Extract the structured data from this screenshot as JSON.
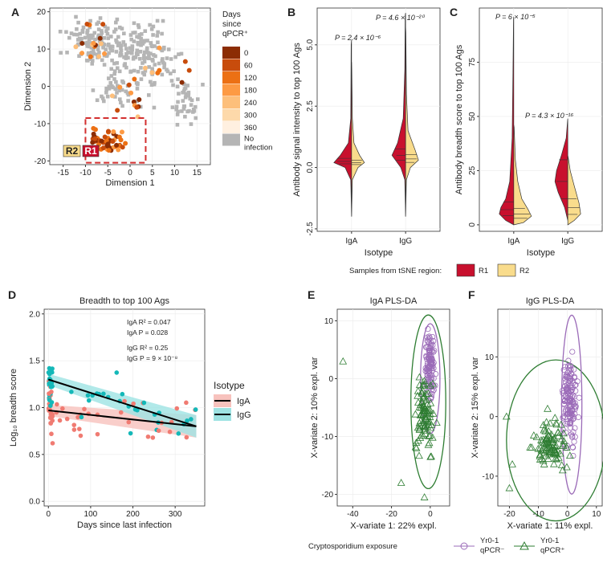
{
  "colors": {
    "r1": "#c8102e",
    "r2": "#f9dc8c",
    "iga": "#f07b72",
    "igg": "#14b8b8",
    "neg": "#9b6bb8",
    "pos": "#2e7d32",
    "grey": "#b5b5b5",
    "days": [
      "#8c2d04",
      "#c84c0c",
      "#ec7014",
      "#fd9a44",
      "#fdbf7b",
      "#fdd9aa",
      "#fff0e0"
    ]
  },
  "chart_data": [
    {
      "panel": "A",
      "type": "scatter",
      "xlabel": "Dimension 1",
      "ylabel": "Dimension 2",
      "xlim": [
        -18,
        18
      ],
      "ylim": [
        -21,
        21
      ],
      "xticks": [
        "-15",
        "-10",
        "-5",
        "0",
        "5",
        "10",
        "15"
      ],
      "yticks": [
        "20",
        "10",
        "0",
        "-10",
        "-20"
      ],
      "legend_title_lines": [
        "Days",
        "since",
        "qPCR⁺"
      ],
      "legend_items": [
        "0",
        "60",
        "120",
        "180",
        "240",
        "300",
        "360",
        "No infection"
      ],
      "region_labels": [
        "R2",
        "R1"
      ],
      "region_box": {
        "x": [
          -10,
          3.5
        ],
        "y": [
          -20.5,
          -8.5
        ]
      },
      "grey_count": 340,
      "colored_count": 90
    },
    {
      "panel": "B",
      "type": "violin",
      "xlabel": "Isotype",
      "ylabel": "Antibody signal intensity to top 100 Ags",
      "categories": [
        "IgA",
        "IgG"
      ],
      "ylim": [
        -2.6,
        6.5
      ],
      "yticks": [
        "-2.5",
        "0.0",
        "2.5",
        "5.0"
      ],
      "pvalues": [
        "P = 2.4 × 10⁻⁶",
        "P = 4.6 × 10⁻²⁰"
      ],
      "series": [
        {
          "name": "R1",
          "medians": [
            0.25,
            0.5
          ]
        },
        {
          "name": "R2",
          "medians": [
            0.2,
            0.35
          ]
        }
      ]
    },
    {
      "panel": "C",
      "type": "violin",
      "xlabel": "Isotype",
      "ylabel": "Antibody breadth score to top 100 Ags",
      "categories": [
        "IgA",
        "IgG"
      ],
      "ylim": [
        -3,
        100
      ],
      "yticks": [
        "0",
        "25",
        "50",
        "75"
      ],
      "pvalues": [
        "P = 6 × 10⁻⁵",
        "P = 4.3 × 10⁻¹⁶"
      ],
      "series": [
        {
          "name": "R1",
          "medians": [
            7,
            20
          ]
        },
        {
          "name": "R2",
          "medians": [
            5,
            8
          ]
        }
      ]
    },
    {
      "panel": "D",
      "type": "scatter",
      "title": "Breadth to top 100 Ags",
      "xlabel": "Days since last infection",
      "ylabel": "Log₁₀ breadth score",
      "xlim": [
        -10,
        370
      ],
      "ylim": [
        -0.05,
        2.05
      ],
      "xticks": [
        "0",
        "100",
        "200",
        "300"
      ],
      "yticks": [
        "0.0",
        "0.5",
        "1.0",
        "1.5",
        "2.0"
      ],
      "legend_title": "Isotype",
      "series": [
        {
          "name": "IgA",
          "fit": [
            [
              0,
              0.97
            ],
            [
              350,
              0.8
            ]
          ],
          "stats": [
            "IgA R² = 0.047",
            "IgA P = 0.028"
          ]
        },
        {
          "name": "IgG",
          "fit": [
            [
              0,
              1.3
            ],
            [
              350,
              0.8
            ]
          ],
          "stats": [
            "IgG R² = 0.25",
            "IgG P = 9 × 10⁻⁸"
          ]
        }
      ]
    },
    {
      "panel": "E",
      "type": "scatter",
      "title": "IgA PLS-DA",
      "xlabel": "X-variate 1: 22% expl.",
      "ylabel": "X-variate 2: 10% expl. var",
      "xlim": [
        -48,
        10
      ],
      "ylim": [
        -22,
        12
      ],
      "xticks": [
        "-40",
        "-20",
        "0"
      ],
      "yticks": [
        "10",
        "0",
        "-10",
        "-20"
      ]
    },
    {
      "panel": "F",
      "type": "scatter",
      "title": "IgG PLS-DA",
      "xlabel": "X-variate 1: 11% expl.",
      "ylabel": "X-variate 2: 15% expl. var",
      "xlim": [
        -24,
        12
      ],
      "ylim": [
        -15,
        18
      ],
      "xticks": [
        "-20",
        "-10",
        "0",
        "10"
      ],
      "yticks": [
        "10",
        "0",
        "-10"
      ]
    }
  ],
  "panel_letters": [
    "A",
    "B",
    "C",
    "D",
    "E",
    "F"
  ],
  "legend_bc": {
    "title": "Samples from tSNE region:",
    "items": [
      "R1",
      "R2"
    ]
  },
  "legend_ef": {
    "title": "Cryptosporidium exposure",
    "items": [
      [
        "Yr0-1",
        "qPCR⁻"
      ],
      [
        "Yr0-1",
        "qPCR⁺"
      ]
    ]
  }
}
